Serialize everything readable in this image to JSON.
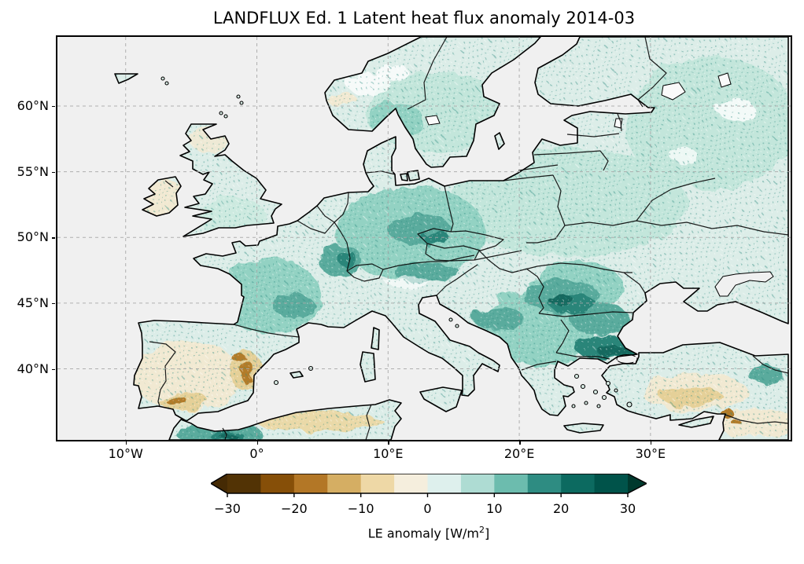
{
  "figure": {
    "title": "LANDFLUX Ed. 1 Latent heat flux anomaly 2014-03"
  },
  "map": {
    "extent": {
      "lon_min": -15.2,
      "lon_max": 40.68,
      "lat_min": 34.59,
      "lat_max": 65.26
    },
    "x_ticks": [
      {
        "lon": -10,
        "label": "10°W"
      },
      {
        "lon": 0,
        "label": "0°"
      },
      {
        "lon": 10,
        "label": "10°E"
      },
      {
        "lon": 20,
        "label": "20°E"
      },
      {
        "lon": 30,
        "label": "30°E"
      }
    ],
    "y_ticks": [
      {
        "lat": 60,
        "label": "60°N"
      },
      {
        "lat": 55,
        "label": "55°N"
      },
      {
        "lat": 50,
        "label": "50°N"
      },
      {
        "lat": 45,
        "label": "45°N"
      },
      {
        "lat": 40,
        "label": "40°N"
      }
    ],
    "sea_color": "#f0f0f0",
    "land_base_color": "#dcede8",
    "grid_color": "#a8a8a8",
    "coast_color": "#000000"
  },
  "colorbar": {
    "vmin": -30,
    "vmax": 30,
    "ticks": [
      "−30",
      "−20",
      "−10",
      "0",
      "10",
      "20",
      "30"
    ],
    "segment_colors": [
      "#523305",
      "#864f08",
      "#b37726",
      "#d5ae63",
      "#eed8a6",
      "#f5eedd",
      "#def0ed",
      "#aedcd3",
      "#6cbcae",
      "#2e8c82",
      "#0c6a60",
      "#00534a"
    ],
    "under_color": "#452a04",
    "over_color": "#00392e",
    "label_pre": "LE anomaly [W/m",
    "label_sup": "2",
    "label_post": "]"
  },
  "chart_data": {
    "type": "heatmap",
    "subtype": "geographic anomaly map (plate carrée, Europe)",
    "title": "LANDFLUX Ed. 1 Latent heat flux anomaly 2014-03",
    "variable": "LE anomaly",
    "units": "W/m2",
    "colormap": "BrBG diverging: brown = negative anomaly, teal/green = positive anomaly",
    "colorbar_ticks": [
      -30,
      -20,
      -10,
      0,
      10,
      20,
      30
    ],
    "colorbar_range": [
      -30,
      30
    ],
    "colorbar_extend": "both",
    "lon_ticks_deg": [
      -10,
      0,
      10,
      20,
      30
    ],
    "lat_ticks_deg": [
      40,
      45,
      50,
      55,
      60
    ],
    "map_extent": {
      "lon": [
        -15.2,
        40.7
      ],
      "lat": [
        34.6,
        65.3
      ]
    },
    "grid": "dashed graticule every 10° lon / 5° lat, drawn over data",
    "regions_read_from_map": [
      {
        "region": "Central Europe (Germany, Czechia, Austria, Alps)",
        "anomaly_wm2": "+10 to +20"
      },
      {
        "region": "Carpathians, Romania, Bulgaria",
        "anomaly_wm2": "+15 to +30"
      },
      {
        "region": "France (Vosges / Massif Central darker cores)",
        "anomaly_wm2": "+5 to +20"
      },
      {
        "region": "Scandinavia and Baltic states",
        "anomaly_wm2": "0 to +10"
      },
      {
        "region": "Eastern Europe / western Russia / Ukraine",
        "anomaly_wm2": "+5 to +10"
      },
      {
        "region": "Ireland and northern Scotland",
        "anomaly_wm2": "-5 to 0"
      },
      {
        "region": "Central/southern Iberia (Andalusia, Valencia streaks)",
        "anomaly_wm2": "-20 to 0"
      },
      {
        "region": "Central Anatolia and Levant",
        "anomaly_wm2": "-10 to 0"
      },
      {
        "region": "Morocco Atlas mountains",
        "anomaly_wm2": "+15 to +30"
      },
      {
        "region": "Oceans, seas and large lakes",
        "anomaly_wm2": "no data (grey/white)"
      }
    ]
  }
}
